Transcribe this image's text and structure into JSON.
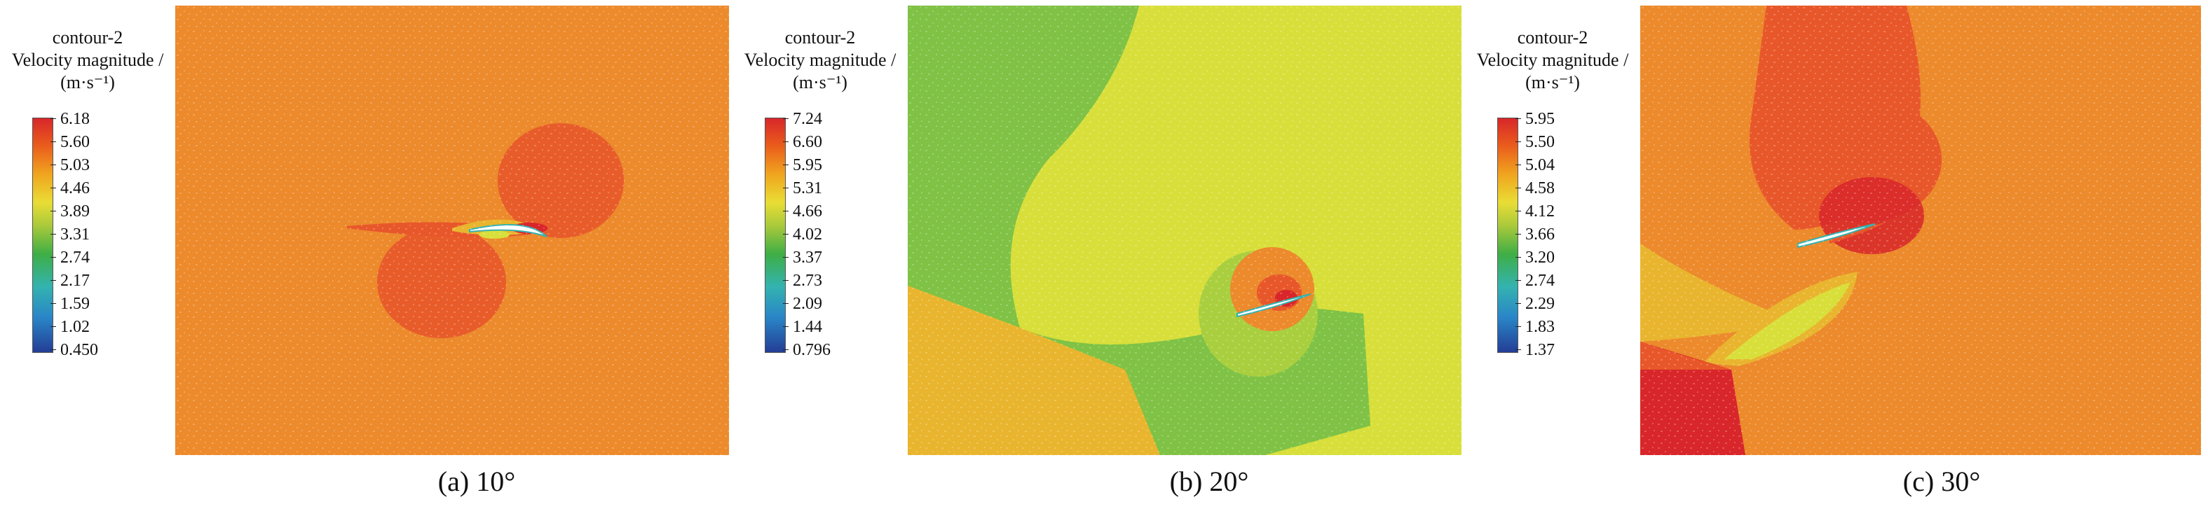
{
  "panels": [
    {
      "legend": {
        "line1": "contour-2",
        "line2": "Velocity magnitude /",
        "line3": "(m·s⁻¹)",
        "ticks": [
          "6.18",
          "5.60",
          "5.03",
          "4.46",
          "3.89",
          "3.31",
          "2.74",
          "2.17",
          "1.59",
          "1.02",
          "0.450"
        ]
      },
      "caption": "(a) 10°"
    },
    {
      "legend": {
        "line1": "contour-2",
        "line2": "Velocity magnitude /",
        "line3": "(m·s⁻¹)",
        "ticks": [
          "7.24",
          "6.60",
          "5.95",
          "5.31",
          "4.66",
          "4.02",
          "3.37",
          "2.73",
          "2.09",
          "1.44",
          "0.796"
        ]
      },
      "caption": "(b)  20°"
    },
    {
      "legend": {
        "line1": "contour-2",
        "line2": "Velocity magnitude /",
        "line3": "(m·s⁻¹)",
        "ticks": [
          "5.95",
          "5.50",
          "5.04",
          "4.58",
          "4.12",
          "3.66",
          "3.20",
          "2.74",
          "2.29",
          "1.83",
          "1.37"
        ]
      },
      "caption": "(c) 30°"
    }
  ],
  "colors": {
    "red": "#d8262a",
    "orange_red": "#e8572a",
    "orange": "#ec8a2c",
    "yellow_orange": "#e9b52e",
    "yellow": "#d8df3a",
    "light_green": "#a9cf3f",
    "green": "#7fc245",
    "cyan": "#33b3b0",
    "blue": "#233e96"
  }
}
